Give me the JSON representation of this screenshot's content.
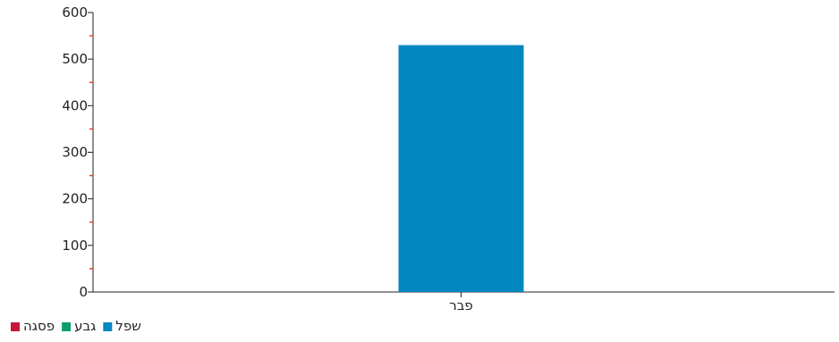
{
  "chart_data": {
    "type": "bar",
    "categories": [
      "פבר"
    ],
    "series": [
      {
        "name": "שפל",
        "color": "#0188c0",
        "values": [
          530
        ]
      },
      {
        "name": "גבע",
        "color": "#0d9e6f",
        "values": [
          null
        ]
      },
      {
        "name": "פסגה",
        "color": "#c6143c",
        "values": [
          null
        ]
      }
    ],
    "ylim": [
      0,
      600
    ],
    "yticks": [
      0,
      100,
      200,
      300,
      400,
      500,
      600
    ],
    "ytick_labels": [
      "0",
      "100",
      "200",
      "300",
      "400",
      "500",
      "600"
    ],
    "minor_tick_color": "#e0453a",
    "grid": false,
    "legend_position": "bottom-left",
    "title": "",
    "xlabel": "",
    "ylabel": ""
  }
}
